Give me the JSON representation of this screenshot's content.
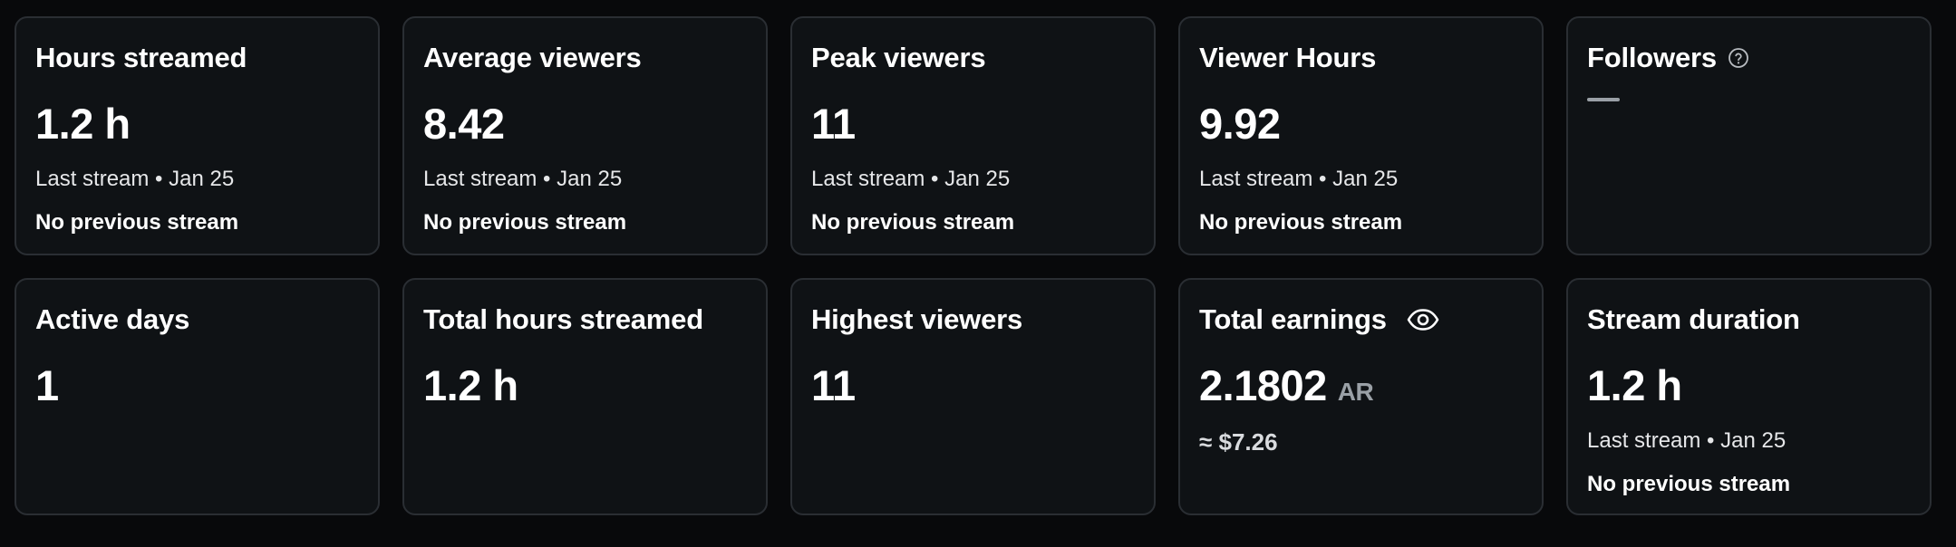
{
  "stats_row1": [
    {
      "title": "Hours streamed",
      "value": "1.2 h",
      "meta": "Last stream • Jan 25",
      "sub": "No previous stream"
    },
    {
      "title": "Average viewers",
      "value": "8.42",
      "meta": "Last stream • Jan 25",
      "sub": "No previous stream"
    },
    {
      "title": "Peak viewers",
      "value": "11",
      "meta": "Last stream • Jan 25",
      "sub": "No previous stream"
    },
    {
      "title": "Viewer Hours",
      "value": "9.92",
      "meta": "Last stream • Jan 25",
      "sub": "No previous stream"
    },
    {
      "title": "Followers",
      "icon": "help-circle-icon"
    }
  ],
  "stats_row2": [
    {
      "title": "Active days",
      "value": "1"
    },
    {
      "title": "Total hours streamed",
      "value": "1.2 h"
    },
    {
      "title": "Highest viewers",
      "value": "11"
    },
    {
      "title": "Total earnings",
      "icon": "eye-icon",
      "value": "2.1802",
      "unit": "AR",
      "usd": "≈ $7.26"
    },
    {
      "title": "Stream duration",
      "value": "1.2 h",
      "meta": "Last stream • Jan 25",
      "sub": "No previous stream"
    }
  ],
  "colors": {
    "background": "#08090b",
    "card": "#0f1215",
    "border": "#2a2e33",
    "muted": "#9aa0a6"
  }
}
